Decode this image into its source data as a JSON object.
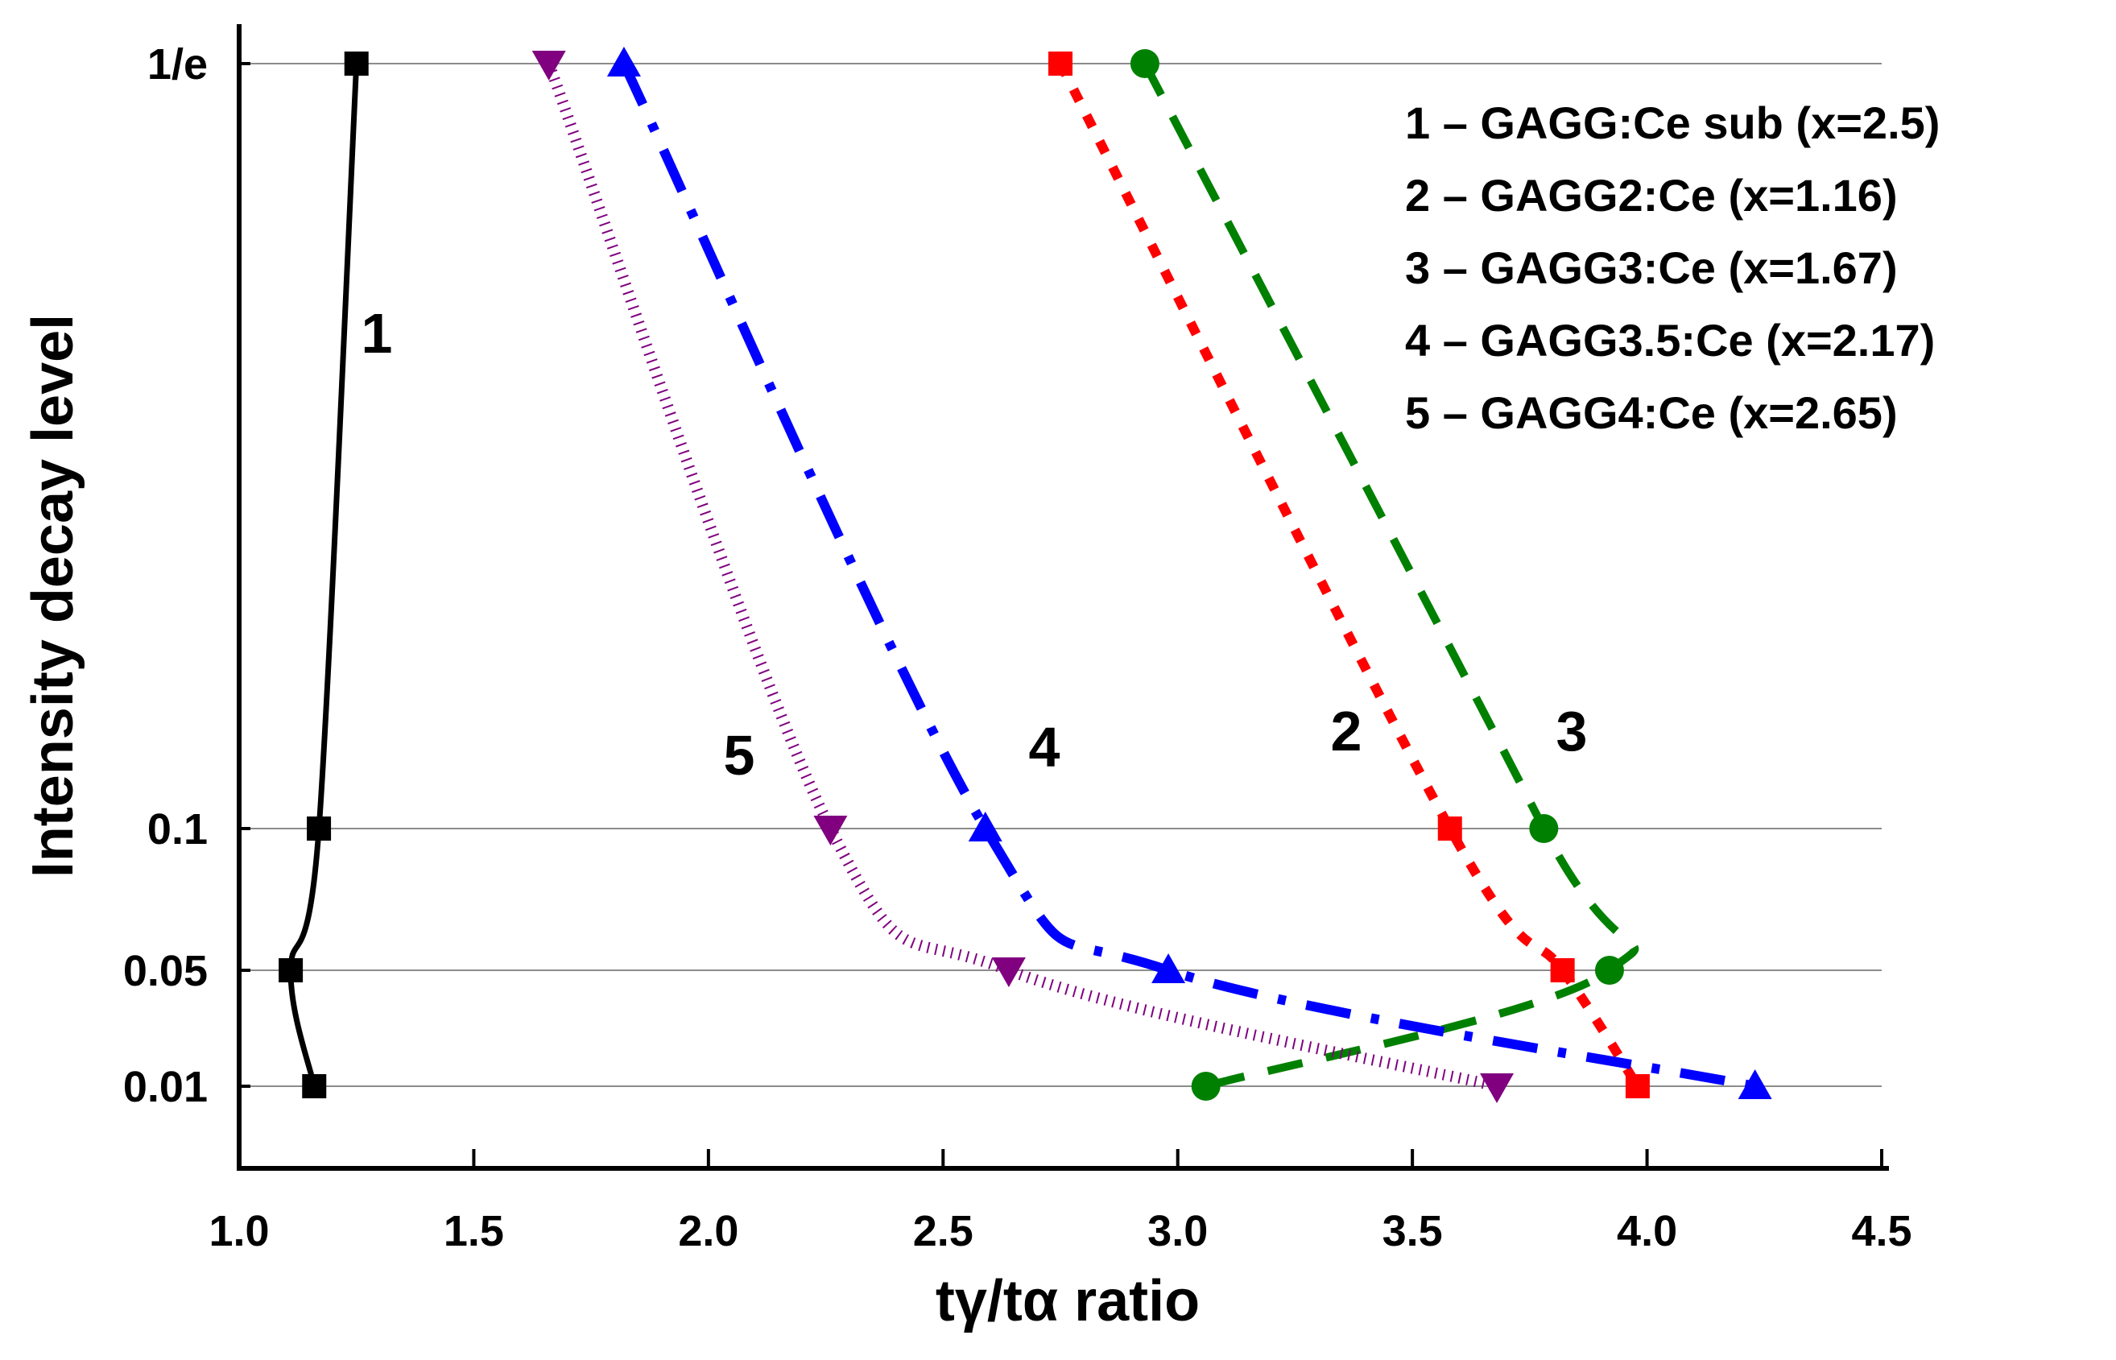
{
  "chart_data": {
    "type": "line",
    "xlabel": "tγ/tα ratio",
    "ylabel": "Intensity decay level",
    "xlim": [
      1.0,
      4.5
    ],
    "x_ticks": [
      "1.0",
      "1.5",
      "2.0",
      "2.5",
      "3.0",
      "3.5",
      "4.0",
      "4.5"
    ],
    "y_levels": [
      "1/e",
      "0.1",
      "0.05",
      "0.01"
    ],
    "gridlines": "horizontal at each decay level",
    "legend_position": "top-right",
    "series": [
      {
        "id": "1",
        "name": "GAGG:Ce sub (x=2.5)",
        "legend": "1 – GAGG:Ce sub (x=2.5)",
        "color": "#000000",
        "marker": "square",
        "line_style": "solid",
        "points": [
          {
            "level": "1/e",
            "x": 1.25
          },
          {
            "level": "0.1",
            "x": 1.17
          },
          {
            "level": "0.05",
            "x": 1.11
          },
          {
            "level": "0.01",
            "x": 1.16
          }
        ]
      },
      {
        "id": "2",
        "name": "GAGG2:Ce (x=1.16)",
        "legend": "2 – GAGG2:Ce (x=1.16)",
        "color": "#ff0000",
        "marker": "square",
        "line_style": "dotted",
        "points": [
          {
            "level": "1/e",
            "x": 2.75
          },
          {
            "level": "0.1",
            "x": 3.58
          },
          {
            "level": "0.05",
            "x": 3.82
          },
          {
            "level": "0.01",
            "x": 3.98
          }
        ]
      },
      {
        "id": "3",
        "name": "GAGG3:Ce (x=1.67)",
        "legend": "3 – GAGG3:Ce (x=1.67)",
        "color": "#008000",
        "marker": "circle",
        "line_style": "dashed",
        "points": [
          {
            "level": "1/e",
            "x": 2.93
          },
          {
            "level": "0.1",
            "x": 3.78
          },
          {
            "level": "0.05",
            "x": 3.92
          },
          {
            "level": "0.01",
            "x": 3.06
          }
        ]
      },
      {
        "id": "4",
        "name": "GAGG3.5:Ce (x=2.17)",
        "legend": "4 – GAGG3.5:Ce (x=2.17)",
        "color": "#0000ff",
        "marker": "triangle-up",
        "line_style": "dash-dot",
        "points": [
          {
            "level": "1/e",
            "x": 1.82
          },
          {
            "level": "0.1",
            "x": 2.59
          },
          {
            "level": "0.05",
            "x": 2.98
          },
          {
            "level": "0.01",
            "x": 4.23
          }
        ]
      },
      {
        "id": "5",
        "name": "GAGG4:Ce (x=2.65)",
        "legend": "5 – GAGG4:Ce (x=2.65)",
        "color": "#800080",
        "marker": "triangle-down",
        "line_style": "hatched",
        "points": [
          {
            "level": "1/e",
            "x": 1.66
          },
          {
            "level": "0.1",
            "x": 2.26
          },
          {
            "level": "0.05",
            "x": 2.64
          },
          {
            "level": "0.01",
            "x": 3.68
          }
        ]
      }
    ],
    "curve_labels": [
      "1",
      "2",
      "3",
      "4",
      "5"
    ]
  }
}
